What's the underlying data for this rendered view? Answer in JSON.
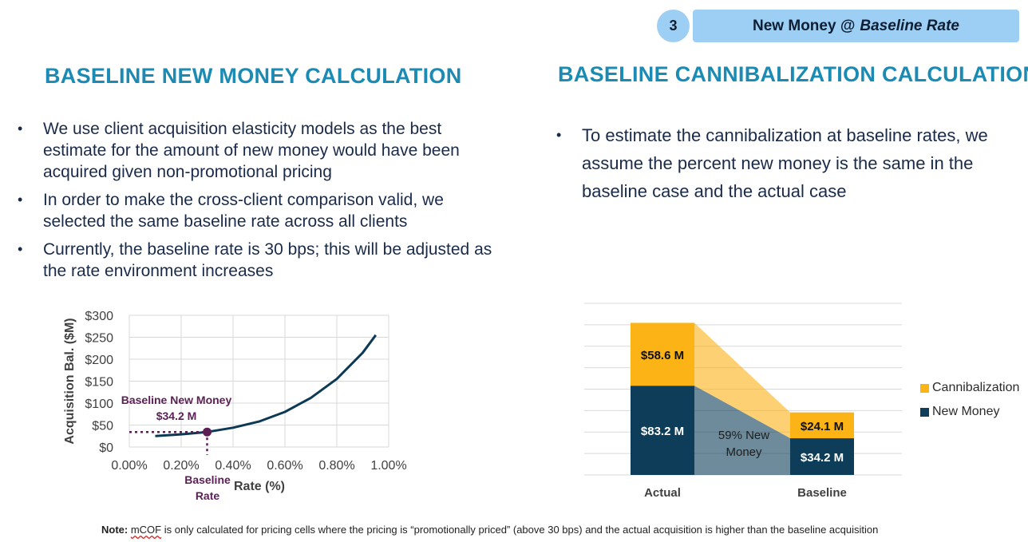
{
  "header": {
    "step_number": "3",
    "label_prefix": "New Money @",
    "label_emphasis": "Baseline Rate",
    "colors": {
      "badge_bg": "#9dcff5"
    }
  },
  "left": {
    "title": "BASELINE NEW MONEY CALCULATION",
    "bullets": [
      "We use client acquisition elasticity models as the best estimate for the amount of new money would have been acquired given non-promotional pricing",
      "In order to make the cross-client comparison valid, we selected the same baseline rate across all clients",
      "Currently, the baseline rate is 30 bps; this will be adjusted as the rate environment increases"
    ]
  },
  "right": {
    "title": "BASELINE CANNIBALIZATION CALCULATION",
    "bullets": [
      "To estimate the cannibalization at baseline rates, we assume the percent new money is the same in the baseline case and the actual case"
    ]
  },
  "note": {
    "label": "Note:",
    "term": "mCOF",
    "text": " is only calculated for pricing cells where the pricing is “promotionally priced” (above 30 bps) and the actual acquisition is higher than the baseline acquisition"
  },
  "chart_data": [
    {
      "type": "line",
      "xlabel": "Rate (%)",
      "ylabel": "Acquisition Bal. ($M)",
      "x_ticks": [
        "0.00%",
        "0.20%",
        "0.40%",
        "0.60%",
        "0.80%",
        "1.00%"
      ],
      "y_ticks": [
        "$0",
        "$50",
        "$100",
        "$150",
        "$200",
        "$250",
        "$300"
      ],
      "xlim": [
        0,
        1.0
      ],
      "ylim": [
        0,
        300
      ],
      "grid": true,
      "series": [
        {
          "color": "#0c3a55",
          "x": [
            0.1,
            0.2,
            0.3,
            0.4,
            0.5,
            0.6,
            0.7,
            0.8,
            0.9,
            0.95
          ],
          "y": [
            25,
            29,
            34.2,
            44,
            58,
            80,
            112,
            155,
            215,
            255
          ]
        }
      ],
      "annotation": {
        "label": "Baseline New Money",
        "value_label": "$34.2 M",
        "x": 0.3,
        "y": 34.2,
        "x_label_line1": "Baseline",
        "x_label_line2": "Rate",
        "color": "#5b1f56"
      }
    },
    {
      "type": "bar",
      "stacked": true,
      "categories": [
        "Actual",
        "Baseline"
      ],
      "ylim": [
        0,
        160
      ],
      "grid": true,
      "legend_position": "right",
      "series": [
        {
          "name": "New Money",
          "color": "#0e3d59",
          "values": [
            83.2,
            34.2
          ],
          "labels": [
            "$83.2 M",
            "$34.2 M"
          ]
        },
        {
          "name": "Cannibalization",
          "color": "#fbb315",
          "values": [
            58.6,
            24.1
          ],
          "labels": [
            "$58.6 M",
            "$24.1 M"
          ]
        }
      ],
      "connector_annotation": "59% New Money"
    }
  ]
}
